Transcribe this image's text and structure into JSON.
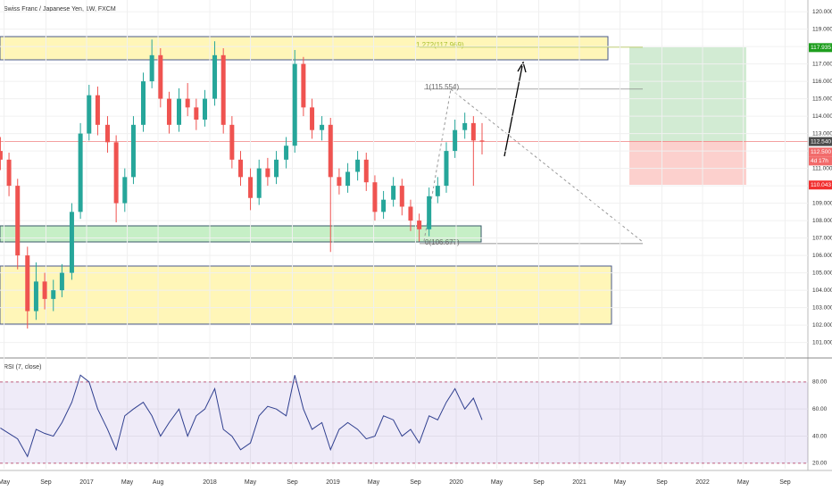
{
  "chart_data": [
    {
      "type": "candlestick",
      "title": "Swiss Franc / Japanese Yen, 1W, FXCM",
      "x": [
        2016.3,
        2016.37,
        2016.44,
        2016.52,
        2016.59,
        2016.66,
        2016.73,
        2016.8,
        2016.88,
        2016.95,
        2017.02,
        2017.09,
        2017.17,
        2017.24,
        2017.31,
        2017.38,
        2017.46,
        2017.53,
        2017.6,
        2017.67,
        2017.75,
        2017.82,
        2017.89,
        2017.96,
        2018.04,
        2018.11,
        2018.18,
        2018.25,
        2018.33,
        2018.4,
        2018.47,
        2018.54,
        2018.62,
        2018.69,
        2018.76,
        2018.83,
        2018.91,
        2018.98,
        2019.05,
        2019.12,
        2019.2,
        2019.27,
        2019.34,
        2019.41,
        2019.49,
        2019.56,
        2019.63,
        2019.7,
        2019.78,
        2019.85,
        2019.92,
        2019.99,
        2020.07,
        2020.14,
        2020.21
      ],
      "open": [
        112,
        111.5,
        110,
        106,
        102.8,
        104.5,
        103.5,
        104,
        105,
        108.5,
        113,
        115.2,
        113.5,
        112.5,
        109,
        110.5,
        113.5,
        116,
        117.5,
        115,
        113.5,
        115,
        114.5,
        113.8,
        115,
        117.5,
        113.5,
        111.5,
        110.5,
        109.3,
        111,
        110.5,
        111.5,
        112.3,
        117,
        114.5,
        113.2,
        113.5,
        110.5,
        110,
        110.8,
        111.5,
        110.2,
        108.5,
        109.2,
        110,
        108.8,
        108,
        107.5,
        109.4,
        110,
        112,
        113.2,
        113.6,
        112.6
      ],
      "high": [
        112.8,
        111.9,
        110.4,
        106.5,
        105.6,
        105,
        104.6,
        105.5,
        109,
        113.6,
        115.8,
        115.7,
        114,
        112.9,
        111,
        114,
        116.5,
        118.4,
        117.9,
        115.4,
        115.6,
        115.9,
        115,
        115.5,
        118.3,
        117.9,
        114,
        112,
        111,
        111.5,
        111.6,
        112,
        112.8,
        117.8,
        117.4,
        115,
        114,
        113.9,
        111,
        111.3,
        112,
        111.9,
        110.6,
        109.7,
        110.5,
        110.4,
        109.2,
        108.4,
        109.9,
        110.5,
        112.5,
        113.8,
        114.2,
        114,
        113.6
      ],
      "low": [
        110.9,
        109.4,
        105.2,
        101.8,
        102.3,
        102.9,
        102.8,
        103.6,
        104.6,
        108.1,
        112.6,
        112.9,
        111.9,
        107.9,
        108.5,
        110.1,
        113.1,
        115.6,
        114.5,
        113,
        113.1,
        114,
        113.2,
        113.4,
        114.6,
        113,
        111,
        110,
        108.6,
        108.9,
        110,
        110.1,
        111,
        111.9,
        114,
        112.7,
        112.6,
        106.2,
        109.5,
        109.6,
        110.3,
        109.7,
        108,
        108.1,
        108.8,
        108.3,
        107.4,
        106.8,
        107.1,
        109,
        109.6,
        111.6,
        112.7,
        110,
        111.8
      ],
      "close": [
        111.5,
        110,
        106,
        102.8,
        104.5,
        103.5,
        104,
        105,
        108.5,
        113,
        115.2,
        113.5,
        112.5,
        109,
        110.5,
        113.5,
        116,
        117.5,
        115,
        113.5,
        115,
        114.5,
        113.8,
        115,
        117.5,
        113.5,
        111.5,
        110.5,
        109.3,
        111,
        110.5,
        111.5,
        112.3,
        117,
        114.5,
        113.2,
        113.5,
        110.5,
        110,
        110.8,
        111.5,
        110.2,
        108.5,
        109.2,
        110,
        108.8,
        108,
        107.5,
        109.4,
        110,
        112,
        113.2,
        113.6,
        112.6,
        112.54
      ],
      "up_color": "#26a69a",
      "down_color": "#ef5350",
      "xlim": [
        2016.297,
        2022.855
      ],
      "xticks": [
        {
          "value": 2016.33,
          "label": "May"
        },
        {
          "value": 2016.67,
          "label": "Sep"
        },
        {
          "value": 2017,
          "label": "2017"
        },
        {
          "value": 2017.33,
          "label": "May"
        },
        {
          "value": 2017.58,
          "label": "Aug"
        },
        {
          "value": 2018,
          "label": "2018"
        },
        {
          "value": 2018.33,
          "label": "May"
        },
        {
          "value": 2018.67,
          "label": "Sep"
        },
        {
          "value": 2019,
          "label": "2019"
        },
        {
          "value": 2019.33,
          "label": "May"
        },
        {
          "value": 2019.67,
          "label": "Sep"
        },
        {
          "value": 2020,
          "label": "2020"
        },
        {
          "value": 2020.33,
          "label": "May"
        },
        {
          "value": 2020.67,
          "label": "Sep"
        },
        {
          "value": 2021,
          "label": "2021"
        },
        {
          "value": 2021.33,
          "label": "May"
        },
        {
          "value": 2021.67,
          "label": "Sep"
        },
        {
          "value": 2022,
          "label": "2022"
        },
        {
          "value": 2022.33,
          "label": "May"
        },
        {
          "value": 2022.67,
          "label": "Sep"
        }
      ],
      "ylim": [
        100.16,
        120.67
      ],
      "yticks": [
        {
          "value": 101,
          "label": "101.000"
        },
        {
          "value": 102,
          "label": "102.000"
        },
        {
          "value": 103,
          "label": "103.000"
        },
        {
          "value": 104,
          "label": "104.000"
        },
        {
          "value": 105,
          "label": "105.000"
        },
        {
          "value": 106,
          "label": "106.000"
        },
        {
          "value": 107,
          "label": "107.000"
        },
        {
          "value": 108,
          "label": "108.000"
        },
        {
          "value": 109,
          "label": "109.000"
        },
        {
          "value": 110,
          "label": "110.000"
        },
        {
          "value": 111,
          "label": "111.000"
        },
        {
          "value": 112,
          "label": "112.000"
        },
        {
          "value": 113,
          "label": "113.000"
        },
        {
          "value": 114,
          "label": "114.000"
        },
        {
          "value": 115,
          "label": "115.000"
        },
        {
          "value": 116,
          "label": "116.000"
        },
        {
          "value": 117,
          "label": "117.000"
        },
        {
          "value": 118,
          "label": "118.000"
        },
        {
          "value": 119,
          "label": "119.000"
        },
        {
          "value": 120,
          "label": "120.000"
        }
      ],
      "price_labels": [
        {
          "value": 117.935,
          "label": "117.935",
          "color": "#1e9e1e"
        },
        {
          "value": 112.54,
          "label": "112.540",
          "color": "#4a4a4a"
        },
        {
          "value": 112.5,
          "label": "112.500",
          "color": "#f26b6b"
        },
        {
          "value": 110.043,
          "label": "110.043",
          "color": "#f23030"
        }
      ],
      "countdown": "4d 17h",
      "annotations": [
        "1.272(117.969)",
        "1(115.554)",
        "0(106.677)"
      ]
    },
    {
      "type": "line",
      "title": "RSI (7, close)",
      "x": [
        2016.3,
        2016.37,
        2016.44,
        2016.52,
        2016.59,
        2016.66,
        2016.73,
        2016.8,
        2016.88,
        2016.95,
        2017.02,
        2017.09,
        2017.17,
        2017.24,
        2017.31,
        2017.38,
        2017.46,
        2017.53,
        2017.6,
        2017.67,
        2017.75,
        2017.82,
        2017.89,
        2017.96,
        2018.04,
        2018.11,
        2018.18,
        2018.25,
        2018.33,
        2018.4,
        2018.47,
        2018.54,
        2018.62,
        2018.69,
        2018.76,
        2018.83,
        2018.91,
        2018.98,
        2019.05,
        2019.12,
        2019.2,
        2019.27,
        2019.34,
        2019.41,
        2019.49,
        2019.56,
        2019.63,
        2019.7,
        2019.78,
        2019.85,
        2019.92,
        2019.99,
        2020.07,
        2020.14,
        2020.21
      ],
      "values": [
        46,
        42,
        38,
        25,
        45,
        42,
        40,
        50,
        65,
        85,
        80,
        60,
        45,
        30,
        55,
        60,
        65,
        55,
        40,
        50,
        60,
        40,
        55,
        60,
        75,
        45,
        40,
        30,
        35,
        55,
        62,
        60,
        55,
        85,
        60,
        45,
        50,
        30,
        45,
        50,
        45,
        38,
        40,
        55,
        52,
        40,
        45,
        35,
        55,
        52,
        65,
        75,
        60,
        68,
        52
      ],
      "color": "#2f3f8f",
      "xlim": [
        2016.297,
        2022.855
      ],
      "ylim": [
        16,
        97
      ],
      "yticks": [
        {
          "value": 20,
          "label": "20.00"
        },
        {
          "value": 40,
          "label": "40.00"
        },
        {
          "value": 60,
          "label": "60.00"
        },
        {
          "value": 80,
          "label": "80.00"
        }
      ],
      "band": [
        20,
        80
      ]
    }
  ]
}
